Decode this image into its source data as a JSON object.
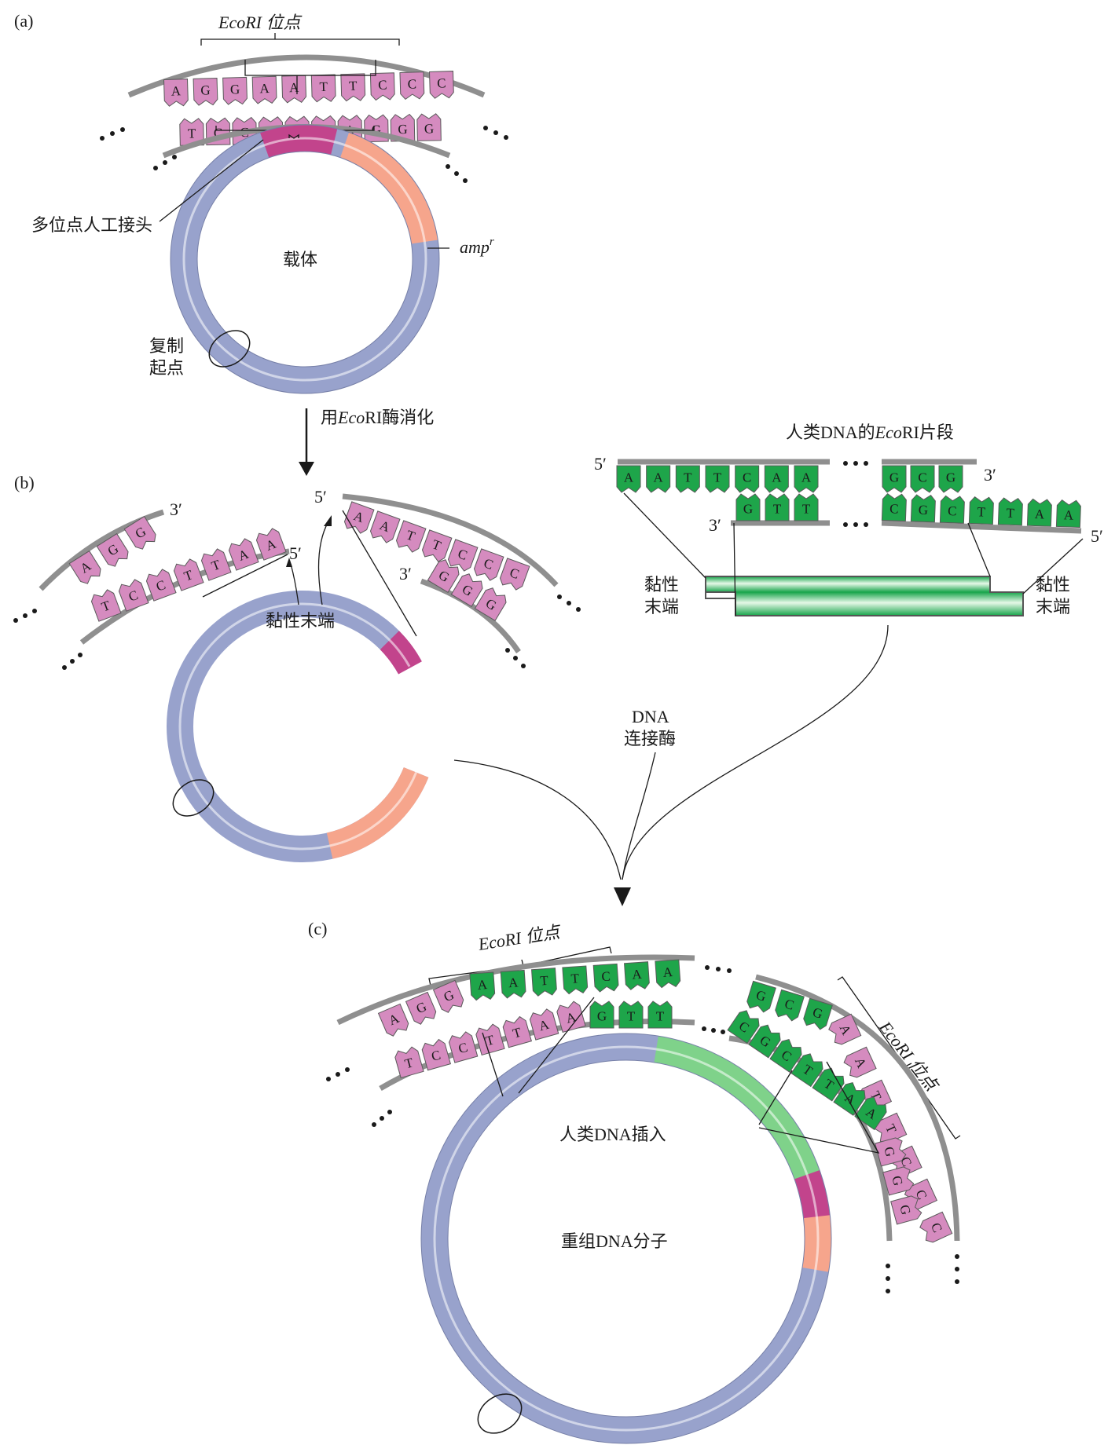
{
  "panels": {
    "a": "(a)",
    "b": "(b)",
    "c": "(c)"
  },
  "panel_a": {
    "ecori_site": "EcoRI 位点",
    "linker": "多位点人工接头",
    "vector": "载体",
    "amp_base": "amp",
    "amp_sup": "r",
    "ori_line1": "复制",
    "ori_line2": "起点",
    "top_bases": [
      "A",
      "G",
      "G",
      "A",
      "A",
      "T",
      "T",
      "C",
      "C",
      "C"
    ],
    "bottom_bases": [
      "T",
      "C",
      "C",
      "T",
      "T",
      "A",
      "A",
      "G",
      "G",
      "G"
    ]
  },
  "digest": {
    "label_pre": "用",
    "label_enzyme": "Eco",
    "label_post": "RI酶消化"
  },
  "panel_b": {
    "sticky_end": "黏性末端",
    "left_top": [
      "A",
      "G",
      "G"
    ],
    "left_bottom": [
      "T",
      "C",
      "C",
      "T",
      "T",
      "A",
      "A"
    ],
    "right_top": [
      "A",
      "A",
      "T",
      "T",
      "C",
      "C",
      "C"
    ],
    "right_bottom": [
      "G",
      "G",
      "G"
    ],
    "end_3": "3′",
    "end_5": "5′"
  },
  "fragment": {
    "title_pre": "人类DNA的",
    "title_enzyme": "Eco",
    "title_post": "RI片段",
    "top_left": [
      "A",
      "A",
      "T",
      "T",
      "C",
      "A",
      "A"
    ],
    "bottom_left": [
      "G",
      "T",
      "T"
    ],
    "top_right": [
      "G",
      "C",
      "G"
    ],
    "bottom_right": [
      "C",
      "G",
      "C",
      "T",
      "T",
      "A",
      "A"
    ],
    "sticky_left_1": "黏性",
    "sticky_left_2": "末端",
    "sticky_right_1": "黏性",
    "sticky_right_2": "末端",
    "end_5": "5′",
    "end_3": "3′"
  },
  "ligase": {
    "line1": "DNA",
    "line2": "连接酶"
  },
  "panel_c": {
    "ecori_site_1": "EcoRI 位点",
    "ecori_site_2": "EcoRI 位点",
    "insert": "人类DNA插入",
    "recombinant": "重组DNA分子",
    "top_left": [
      "A",
      "G",
      "G",
      "A",
      "A",
      "T",
      "T",
      "C",
      "A",
      "A"
    ],
    "bottom_left": [
      "T",
      "C",
      "C",
      "T",
      "T",
      "A",
      "A",
      "G",
      "T",
      "T"
    ],
    "top_right": [
      "G",
      "C",
      "G",
      "A",
      "A",
      "T",
      "T",
      "C",
      "C",
      "C"
    ],
    "bottom_right": [
      "C",
      "G",
      "C",
      "T",
      "T",
      "A",
      "A",
      "G",
      "G",
      "G"
    ]
  },
  "colors": {
    "vector_blue": "#98a2cc",
    "amp_orange": "#f6a58c",
    "linker_magenta": "#c2448c",
    "vector_base": "#d58bbf",
    "human_green": "#1ea54a",
    "insert_light": "#7fd28a",
    "backbone_grey": "#8f8f8f"
  }
}
